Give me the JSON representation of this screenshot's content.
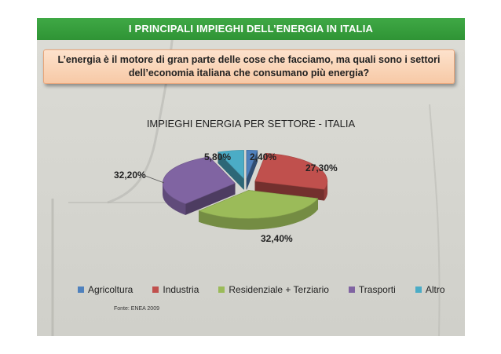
{
  "slide": {
    "title": "I PRINCIPALI IMPIEGHI DELL’ENERGIA IN ITALIA",
    "question_line1": "L’energia è il motore di gran parte delle cose che facciamo, ma quali sono i settori",
    "question_line2": "dell’economia italiana che consumano più energia?",
    "source": "Fonte: ENEA 2009"
  },
  "chart_data": {
    "type": "pie",
    "title": "IMPIEGHI ENERGIA PER SETTORE - ITALIA",
    "style": "3d-exploded",
    "legend_position": "bottom",
    "series": [
      {
        "name": "Agricoltura",
        "value": 2.4,
        "label": "2,40%",
        "color": "#4f81bd"
      },
      {
        "name": "Industria",
        "value": 27.3,
        "label": "27,30%",
        "color": "#c0504d"
      },
      {
        "name": "Residenziale + Terziario",
        "value": 32.4,
        "label": "32,40%",
        "color": "#9bbb59"
      },
      {
        "name": "Trasporti",
        "value": 32.2,
        "label": "32,20%",
        "color": "#8064a2"
      },
      {
        "name": "Altro",
        "value": 5.8,
        "label": "5,80%",
        "color": "#4bacc6"
      }
    ]
  }
}
